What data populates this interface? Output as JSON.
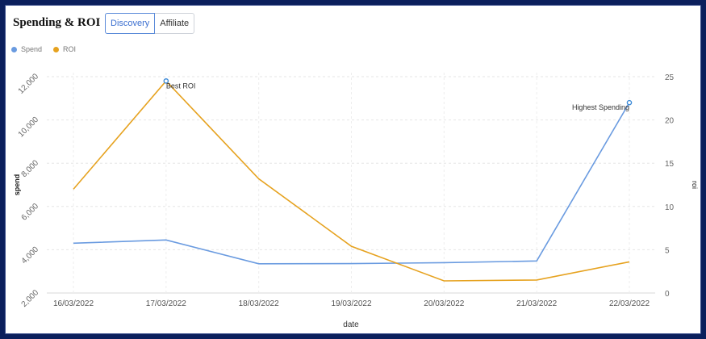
{
  "header": {
    "title": "Spending & ROI"
  },
  "tabs": [
    {
      "label": "Discovery",
      "active": true
    },
    {
      "label": "Affiliate",
      "active": false
    }
  ],
  "legend": [
    {
      "label": "Spend",
      "color": "#6a9be0"
    },
    {
      "label": "ROI",
      "color": "#e6a21f"
    }
  ],
  "chart_data": {
    "type": "line",
    "xlabel": "date",
    "ylabel_left": "spend",
    "ylabel_right": "roi",
    "categories": [
      "16/03/2022",
      "17/03/2022",
      "18/03/2022",
      "19/03/2022",
      "20/03/2022",
      "21/03/2022",
      "22/03/2022"
    ],
    "y_left": {
      "min": 2000,
      "max": 12000,
      "ticks": [
        2000,
        4000,
        6000,
        8000,
        10000,
        12000
      ],
      "tick_labels": [
        "2,000",
        "4,000",
        "6,000",
        "8,000",
        "10,000",
        "12,000"
      ]
    },
    "y_right": {
      "min": 0,
      "max": 25,
      "ticks": [
        0,
        5,
        10,
        15,
        20,
        25
      ],
      "tick_labels": [
        "0",
        "5",
        "10",
        "15",
        "20",
        "25"
      ]
    },
    "grid": true,
    "series": [
      {
        "name": "Spend",
        "axis": "left",
        "color": "#6a9be0",
        "values": [
          4300,
          4450,
          3350,
          3360,
          3400,
          3480,
          10800
        ]
      },
      {
        "name": "ROI",
        "axis": "right",
        "color": "#e6a21f",
        "values": [
          12.0,
          24.5,
          13.2,
          5.4,
          1.4,
          1.5,
          3.6
        ]
      }
    ],
    "annotations": [
      {
        "text": "Best ROI",
        "series": "ROI",
        "index": 1
      },
      {
        "text": "Highest Spending",
        "series": "Spend",
        "index": 6
      }
    ]
  }
}
